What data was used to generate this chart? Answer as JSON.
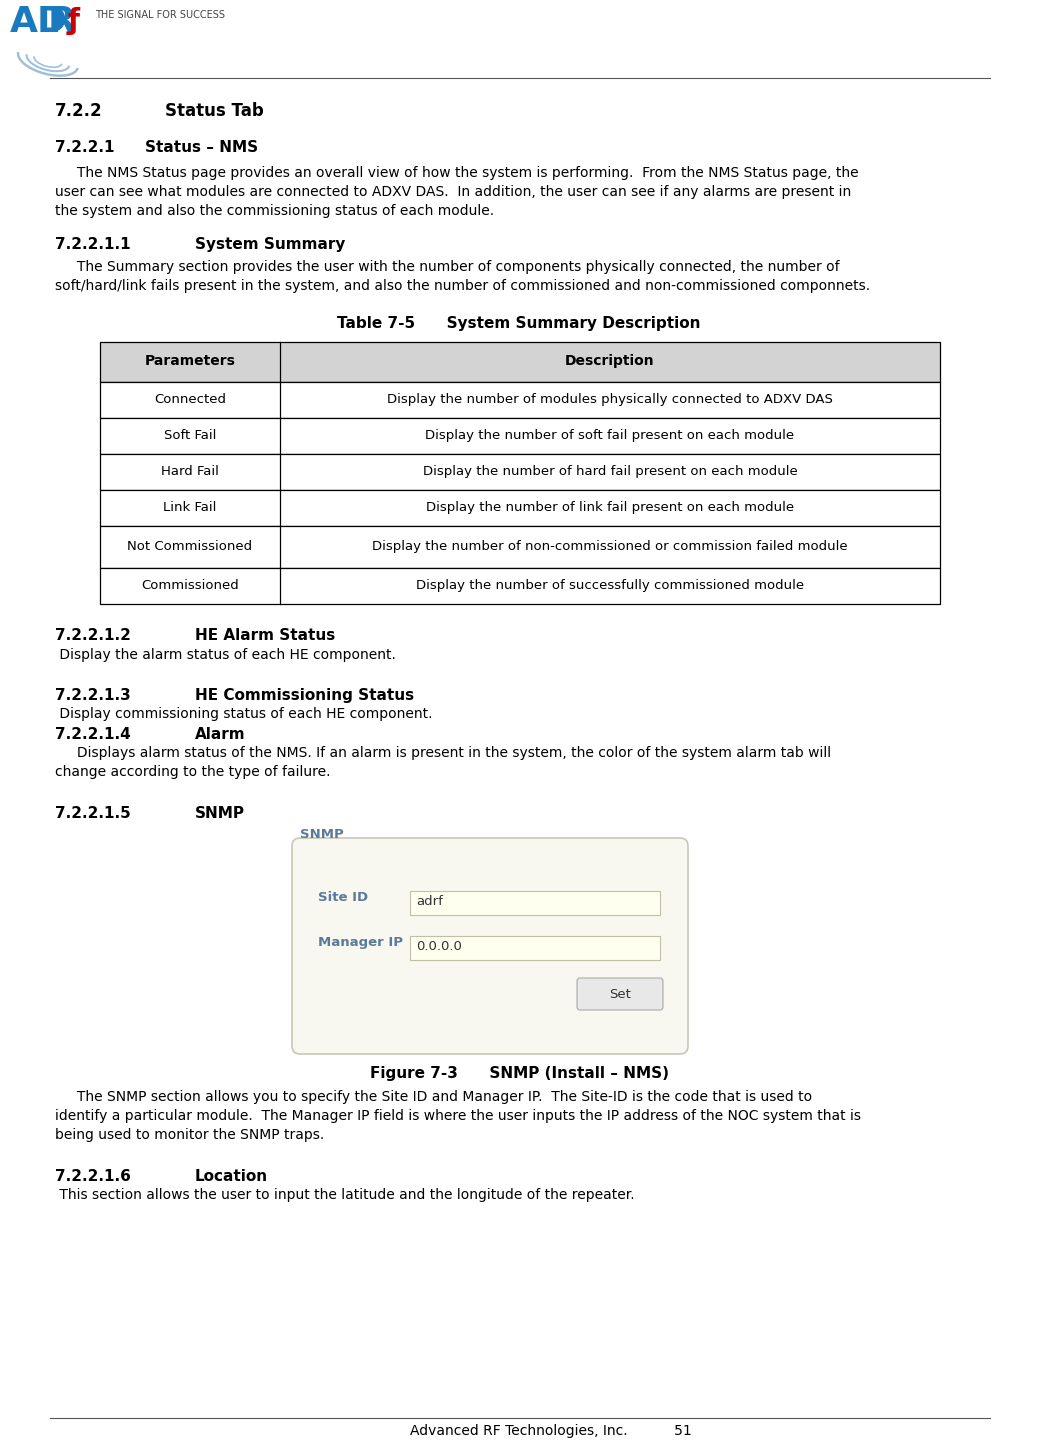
{
  "page_num": "51",
  "footer_text": "Advanced RF Technologies, Inc.",
  "section_722": "7.2.2      Status Tab",
  "section_7221": "7.2.2.1    Status – NMS",
  "section_72211": "7.2.2.1.1         System Summary",
  "table_title": "Table 7-5      System Summary Description",
  "table_headers": [
    "Parameters",
    "Description"
  ],
  "table_rows": [
    [
      "Connected",
      "Display the number of modules physically connected to ADXV DAS"
    ],
    [
      "Soft Fail",
      "Display the number of soft fail present on each module"
    ],
    [
      "Hard Fail",
      "Display the number of hard fail present on each module"
    ],
    [
      "Link Fail",
      "Display the number of link fail present on each module"
    ],
    [
      "Not Commissioned",
      "Display the number of non-commissioned or commission failed module"
    ],
    [
      "Commissioned",
      "Display the number of successfully commissioned module"
    ]
  ],
  "section_72212": "7.2.2.1.2         HE Alarm Status",
  "para_72212": " Display the alarm status of each HE component.",
  "section_72213": "7.2.2.1.3         HE Commissioning Status",
  "para_72213": " Display commissioning status of each HE component.",
  "section_72214": "7.2.2.1.4         Alarm",
  "section_72215": "7.2.2.1.5         SNMP",
  "figure_caption": "Figure 7-3      SNMP (Install – NMS)",
  "section_72216": "7.2.2.1.6         Location",
  "para_72216": " This section allows the user to input the latitude and the longitude of the repeater.",
  "header_bg": "#d3d3d3",
  "table_border": "#000000",
  "text_color": "#000000",
  "bg_color": "#ffffff",
  "snmp_label_color": "#5a7a9a",
  "snmp_field_bg": "#fffff0",
  "snmp_inner_bg": "#f8f8f0",
  "snmp_btn_bg": "#e8e8e8"
}
